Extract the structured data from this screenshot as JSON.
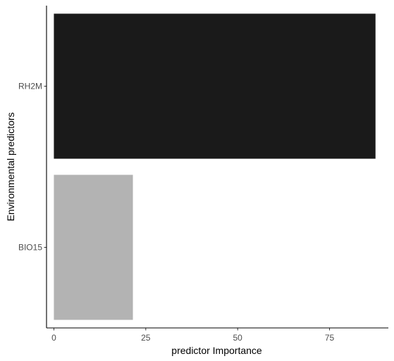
{
  "chart_data": {
    "type": "bar",
    "orientation": "horizontal",
    "title": "",
    "xlabel": "predictor Importance",
    "ylabel": "Environmental predictors",
    "categories": [
      "BIO15",
      "RH2M"
    ],
    "values": [
      21.5,
      87.5
    ],
    "colors": [
      "#b3b3b3",
      "#1a1a1a"
    ],
    "xlim": [
      -2,
      91
    ],
    "xticks": [
      0,
      25,
      50,
      75
    ],
    "xtick_labels": [
      "0",
      "25",
      "50",
      "75"
    ],
    "grid": false,
    "legend": "none"
  }
}
